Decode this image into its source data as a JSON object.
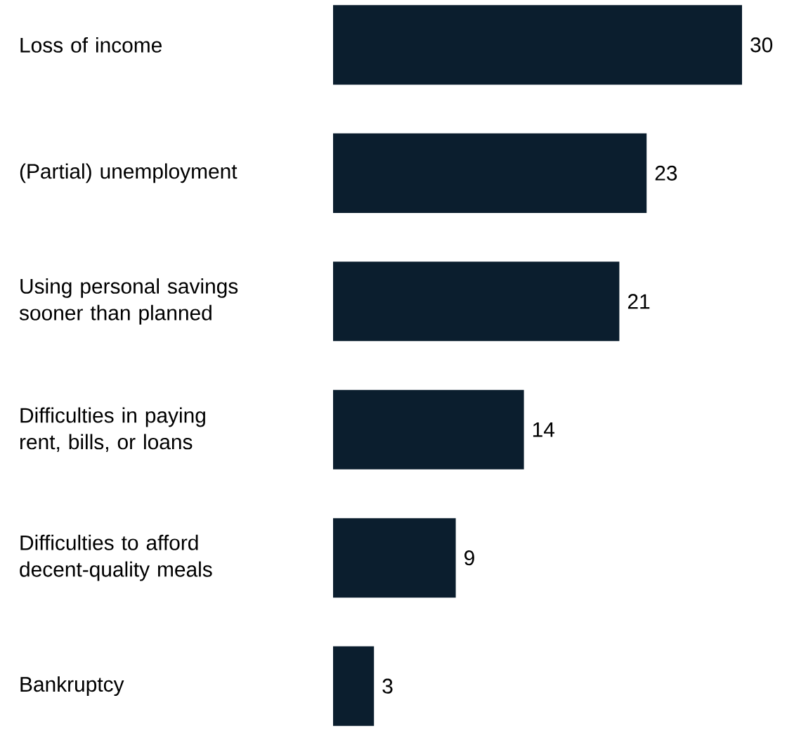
{
  "chart_data": {
    "type": "bar",
    "orientation": "horizontal",
    "categories": [
      "Loss of income",
      "(Partial) unemployment",
      "Using personal savings sooner than planned",
      "Difficulties in paying rent, bills, or loans",
      "Difficulties to afford decent-quality meals",
      "Bankruptcy"
    ],
    "values": [
      30,
      23,
      21,
      14,
      9,
      3
    ],
    "color": "#0b1e2e",
    "data_labels": true
  }
}
